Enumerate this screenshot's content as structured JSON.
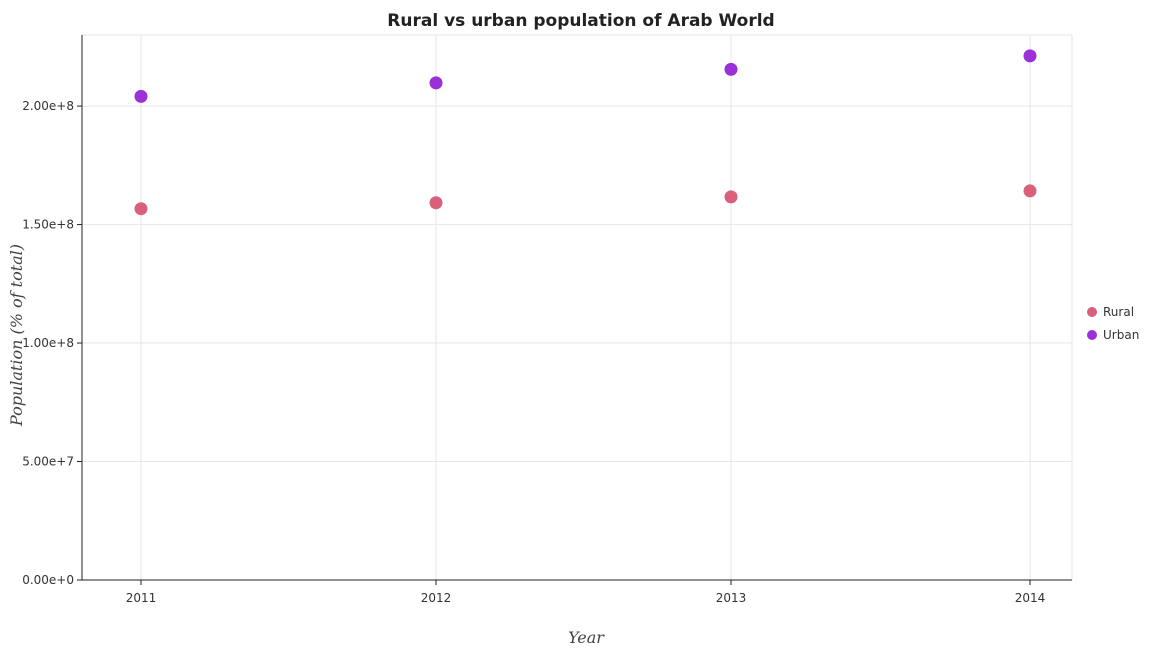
{
  "chart_data": {
    "type": "scatter",
    "title": "Rural vs urban population of Arab World",
    "xlabel": "Year",
    "ylabel": "Population (% of total)",
    "categories": [
      "2011",
      "2012",
      "2013",
      "2014"
    ],
    "ylim": [
      0,
      230000000
    ],
    "yticks": [
      0,
      50000000,
      100000000,
      150000000,
      200000000
    ],
    "ytick_labels": [
      "0.00e+0",
      "5.00e+7",
      "1.00e+8",
      "1.50e+8",
      "2.00e+8"
    ],
    "grid": true,
    "legend_position": "right",
    "series": [
      {
        "name": "Rural",
        "color": "#d9607a",
        "values": [
          156700000,
          159200000,
          161700000,
          164200000
        ]
      },
      {
        "name": "Urban",
        "color": "#9b30d9",
        "values": [
          204100000,
          209800000,
          215500000,
          221200000
        ]
      }
    ]
  }
}
